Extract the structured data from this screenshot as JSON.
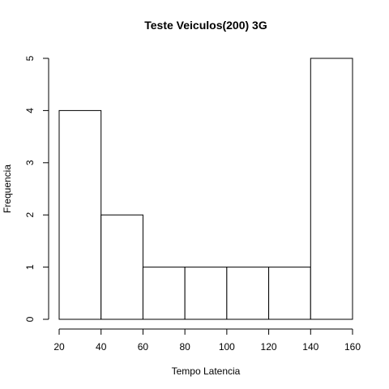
{
  "chart_data": {
    "type": "bar",
    "title": "Teste Veiculos(200) 3G",
    "xlabel": "Tempo Latencia",
    "ylabel": "Frequencia",
    "bins": [
      {
        "start": 20,
        "end": 40,
        "count": 4
      },
      {
        "start": 40,
        "end": 60,
        "count": 2
      },
      {
        "start": 60,
        "end": 80,
        "count": 1
      },
      {
        "start": 80,
        "end": 100,
        "count": 1
      },
      {
        "start": 100,
        "end": 120,
        "count": 1
      },
      {
        "start": 120,
        "end": 140,
        "count": 1
      },
      {
        "start": 140,
        "end": 160,
        "count": 5
      }
    ],
    "xlim": [
      20,
      160
    ],
    "ylim": [
      0,
      5
    ],
    "xticks": [
      "20",
      "40",
      "60",
      "80",
      "100",
      "120",
      "140",
      "160"
    ],
    "yticks": [
      "0",
      "1",
      "2",
      "3",
      "4",
      "5"
    ],
    "grid": false
  }
}
